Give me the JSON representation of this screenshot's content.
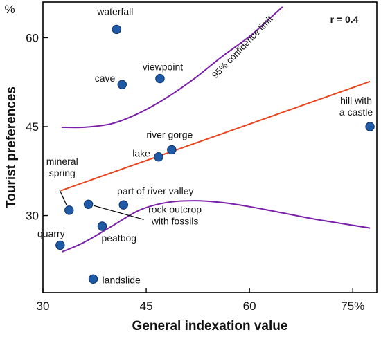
{
  "chart_data": {
    "type": "scatter",
    "xlabel": "General indexation value",
    "ylabel": "Tourist preferences",
    "y_unit_label": "%",
    "xlim": [
      30,
      78.5
    ],
    "ylim": [
      17,
      66
    ],
    "x_ticks": [
      {
        "value": 30,
        "label": "30"
      },
      {
        "value": 45,
        "label": "45"
      },
      {
        "value": 60,
        "label": "60"
      },
      {
        "value": 75,
        "label": "75%"
      }
    ],
    "y_ticks": [
      {
        "value": 30,
        "label": "30"
      },
      {
        "value": 45,
        "label": "45"
      },
      {
        "value": 60,
        "label": "60"
      }
    ],
    "grid": false,
    "annotation_r": "r = 0.4",
    "confidence_label": "95% confidence limit",
    "colors": {
      "points": "#1f5aa6",
      "point_edge": "#0e2f66",
      "regression": "#e8451e",
      "confidence": "#7a1fa8",
      "axes": "#000000"
    },
    "points": [
      {
        "label": "waterfall",
        "x": 40.7,
        "y": 61.4
      },
      {
        "label": "viewpoint",
        "x": 47.0,
        "y": 53.1
      },
      {
        "label": "cave",
        "x": 41.5,
        "y": 52.1
      },
      {
        "label": "hill with a castle",
        "x": 77.5,
        "y": 45.0
      },
      {
        "label": "river gorge",
        "x": 48.7,
        "y": 41.1
      },
      {
        "label": "lake",
        "x": 46.8,
        "y": 39.9
      },
      {
        "label": "mineral spring",
        "x": 33.8,
        "y": 30.9
      },
      {
        "label": "rock outcrop with fossils",
        "x": 36.6,
        "y": 31.9
      },
      {
        "label": "part of river valley",
        "x": 41.7,
        "y": 31.8
      },
      {
        "label": "peatbog",
        "x": 38.6,
        "y": 28.2
      },
      {
        "label": "quarry",
        "x": 32.5,
        "y": 25.0
      },
      {
        "label": "landslide",
        "x": 37.3,
        "y": 19.3
      }
    ],
    "regression_line": [
      {
        "x": 32.6,
        "y": 34.2
      },
      {
        "x": 77.5,
        "y": 52.6
      }
    ],
    "confidence_upper": [
      {
        "x": 32.7,
        "y": 44.9
      },
      {
        "x": 36.0,
        "y": 44.9
      },
      {
        "x": 40.0,
        "y": 45.5
      },
      {
        "x": 44.0,
        "y": 47.3
      },
      {
        "x": 48.0,
        "y": 49.9
      },
      {
        "x": 52.0,
        "y": 53.1
      },
      {
        "x": 56.0,
        "y": 56.8
      },
      {
        "x": 60.0,
        "y": 60.2
      },
      {
        "x": 63.0,
        "y": 63.3
      },
      {
        "x": 64.8,
        "y": 65.2
      }
    ],
    "confidence_lower": [
      {
        "x": 32.8,
        "y": 23.9
      },
      {
        "x": 36.0,
        "y": 25.5
      },
      {
        "x": 40.0,
        "y": 28.2
      },
      {
        "x": 44.0,
        "y": 30.9
      },
      {
        "x": 48.0,
        "y": 32.2
      },
      {
        "x": 52.0,
        "y": 32.5
      },
      {
        "x": 56.0,
        "y": 32.2
      },
      {
        "x": 60.0,
        "y": 31.5
      },
      {
        "x": 65.0,
        "y": 30.4
      },
      {
        "x": 70.0,
        "y": 29.3
      },
      {
        "x": 77.5,
        "y": 27.9
      }
    ]
  }
}
